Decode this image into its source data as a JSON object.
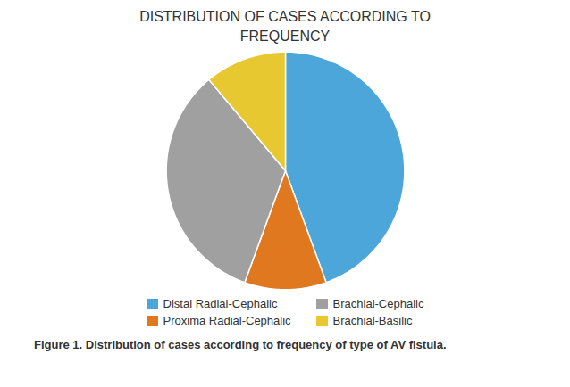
{
  "chart_data": {
    "type": "pie",
    "title": "DISTRIBUTION OF CASES ACCORDING TO\nFREQUENCY",
    "caption": "Figure 1.  Distribution of cases according to frequency of type of AV fistula.",
    "categories": [
      "Distal Radial-Cephalic",
      "Proxima Radial-Cephalic",
      "Brachial-Cephalic",
      "Brachial-Basilic"
    ],
    "values": [
      40,
      10,
      30,
      10
    ],
    "colors": [
      "#4da6d9",
      "#e07820",
      "#a0a0a0",
      "#e8c830"
    ],
    "legend": "bottom"
  }
}
